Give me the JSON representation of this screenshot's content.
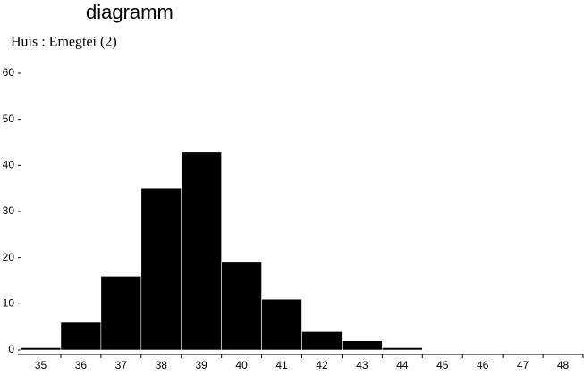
{
  "chart_data": {
    "type": "bar",
    "title": "diagramm",
    "subtitle": "Huis : Emegtei (2)",
    "categories": [
      "35",
      "36",
      "37",
      "38",
      "39",
      "40",
      "41",
      "42",
      "43",
      "44",
      "45",
      "46",
      "47",
      "48"
    ],
    "values": [
      0.5,
      6,
      16,
      35,
      43,
      19,
      11,
      4,
      2,
      0.5,
      0,
      0,
      0,
      0
    ],
    "color": "#000000",
    "ylim": [
      0,
      60
    ],
    "yticks": [
      0,
      10,
      20,
      30,
      40,
      50,
      60
    ],
    "grid": false
  }
}
